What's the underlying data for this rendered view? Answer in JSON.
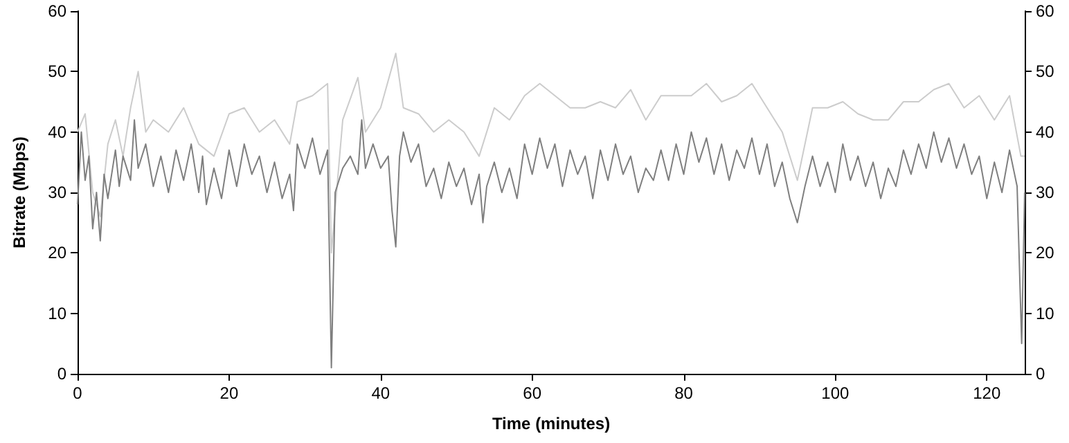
{
  "chart_data": {
    "type": "line",
    "xlabel": "Time (minutes)",
    "ylabel": "Bitrate (Mbps)",
    "xlim": [
      0,
      125
    ],
    "xticks": [
      0,
      20,
      40,
      60,
      80,
      100,
      120
    ],
    "ylim": [
      0,
      60
    ],
    "yticks": [
      0,
      10,
      20,
      30,
      40,
      50,
      60
    ],
    "y2lim": [
      0,
      60
    ],
    "y2ticks": [
      0,
      10,
      20,
      30,
      40,
      50,
      60
    ],
    "grid": false,
    "marker": "none",
    "line_style": "solid",
    "series": [
      {
        "color": "#cccccc",
        "x": [
          0,
          1,
          2,
          3,
          4,
          5,
          6,
          7,
          8,
          9,
          10,
          12,
          14,
          16,
          18,
          20,
          22,
          24,
          26,
          28,
          29,
          31,
          33,
          33.5,
          35,
          37,
          38,
          40,
          42,
          43,
          45,
          47,
          49,
          51,
          53,
          55,
          57,
          59,
          61,
          63,
          65,
          67,
          69,
          71,
          73,
          75,
          77,
          79,
          81,
          83,
          85,
          87,
          89,
          91,
          93,
          95,
          97,
          99,
          101,
          103,
          105,
          107,
          109,
          111,
          113,
          115,
          117,
          119,
          121,
          123,
          124.5,
          125
        ],
        "values": [
          40,
          43,
          30,
          26,
          38,
          42,
          36,
          44,
          50,
          40,
          42,
          40,
          44,
          38,
          36,
          43,
          44,
          40,
          42,
          38,
          45,
          46,
          48,
          20,
          42,
          49,
          40,
          44,
          53,
          44,
          43,
          40,
          42,
          40,
          36,
          44,
          42,
          46,
          48,
          46,
          44,
          44,
          45,
          44,
          47,
          42,
          46,
          46,
          46,
          48,
          45,
          46,
          48,
          44,
          40,
          32,
          44,
          44,
          45,
          43,
          42,
          42,
          45,
          45,
          47,
          48,
          44,
          46,
          42,
          46,
          36,
          36
        ]
      },
      {
        "color": "#7f7f7f",
        "x": [
          0,
          0.5,
          1,
          1.5,
          2,
          2.5,
          3,
          3.5,
          4,
          5,
          5.5,
          6,
          7,
          7.5,
          8,
          9,
          10,
          11,
          12,
          13,
          14,
          15,
          16,
          16.5,
          17,
          18,
          19,
          20,
          21,
          22,
          23,
          24,
          25,
          26,
          27,
          28,
          28.5,
          29,
          30,
          31,
          32,
          33,
          33.5,
          34,
          35,
          36,
          37,
          37.5,
          38,
          39,
          40,
          41,
          41.5,
          42,
          42.5,
          43,
          44,
          45,
          46,
          47,
          48,
          49,
          50,
          51,
          52,
          53,
          53.5,
          54,
          55,
          56,
          57,
          58,
          59,
          60,
          61,
          62,
          63,
          64,
          65,
          66,
          67,
          68,
          69,
          70,
          71,
          72,
          73,
          74,
          75,
          76,
          77,
          78,
          79,
          80,
          81,
          82,
          83,
          84,
          85,
          86,
          87,
          88,
          89,
          90,
          91,
          92,
          93,
          94,
          95,
          96,
          97,
          98,
          99,
          100,
          101,
          102,
          103,
          104,
          105,
          106,
          107,
          108,
          109,
          110,
          111,
          112,
          113,
          114,
          115,
          116,
          117,
          118,
          119,
          120,
          121,
          122,
          123,
          124,
          124.6,
          125
        ],
        "values": [
          28,
          40,
          32,
          36,
          24,
          30,
          22,
          33,
          29,
          37,
          31,
          36,
          32,
          42,
          34,
          38,
          31,
          36,
          30,
          37,
          32,
          38,
          30,
          36,
          28,
          34,
          29,
          37,
          31,
          38,
          33,
          36,
          30,
          35,
          29,
          33,
          27,
          38,
          34,
          39,
          33,
          37,
          1,
          30,
          34,
          36,
          33,
          42,
          34,
          38,
          34,
          36,
          27,
          21,
          36,
          40,
          35,
          38,
          31,
          34,
          29,
          35,
          31,
          34,
          28,
          33,
          25,
          31,
          35,
          30,
          34,
          29,
          38,
          33,
          39,
          34,
          38,
          31,
          37,
          33,
          36,
          29,
          37,
          32,
          38,
          33,
          36,
          30,
          34,
          32,
          37,
          32,
          38,
          33,
          40,
          35,
          39,
          33,
          38,
          32,
          37,
          34,
          39,
          33,
          38,
          31,
          35,
          29,
          25,
          31,
          36,
          31,
          35,
          30,
          38,
          32,
          36,
          31,
          35,
          29,
          34,
          31,
          37,
          33,
          38,
          34,
          40,
          35,
          39,
          34,
          38,
          33,
          36,
          29,
          35,
          30,
          37,
          31,
          5,
          30
        ]
      }
    ]
  }
}
